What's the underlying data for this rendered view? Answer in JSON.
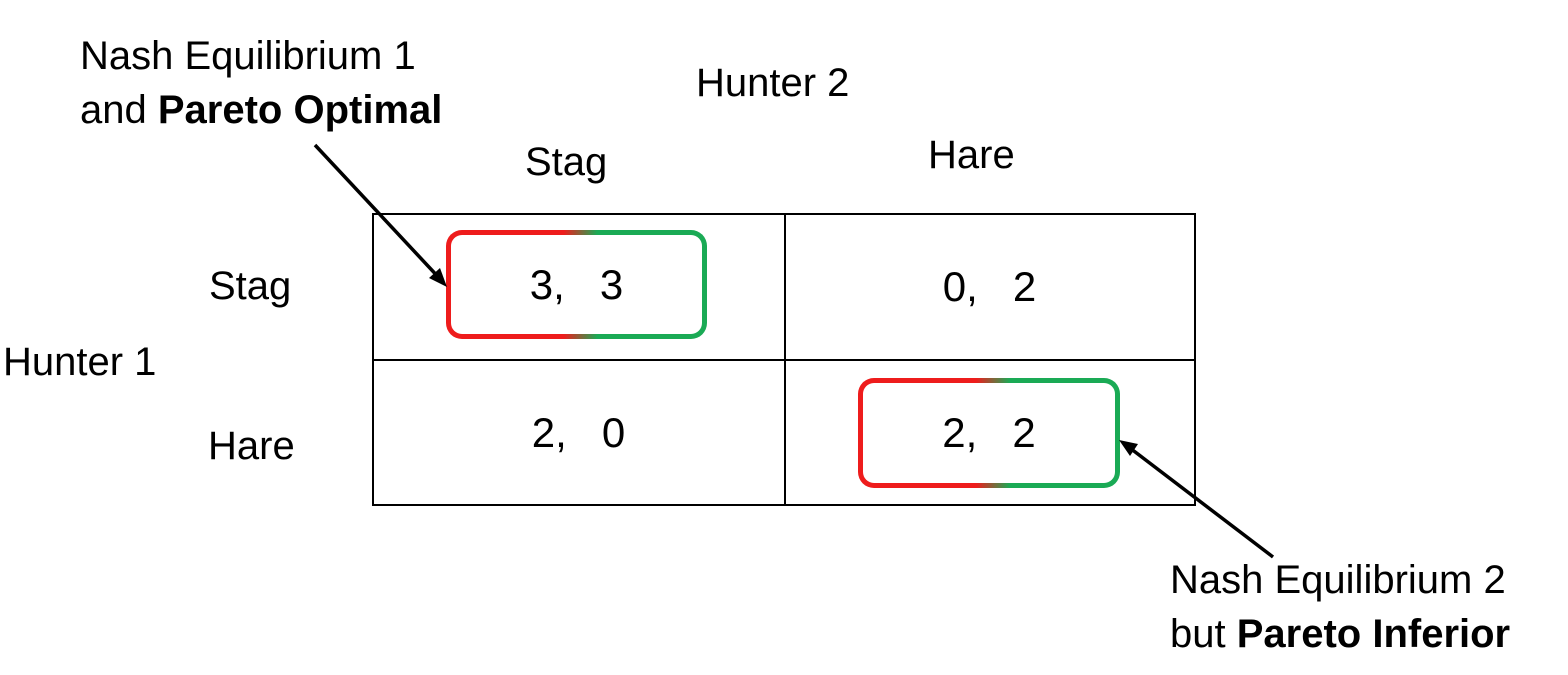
{
  "players": {
    "column_player": "Hunter 2",
    "row_player": "Hunter 1"
  },
  "strategies": {
    "columns": [
      "Stag",
      "Hare"
    ],
    "rows": [
      "Stag",
      "Hare"
    ]
  },
  "payoffs": {
    "stag_stag": "3,   3",
    "stag_hare": "0,   2",
    "hare_stag": "2,   0",
    "hare_hare": "2,   2"
  },
  "annotations": {
    "eq1": {
      "line1": "Nash Equilibrium 1",
      "line2_prefix": "and ",
      "line2_bold": "Pareto Optimal"
    },
    "eq2": {
      "line1": "Nash Equilibrium 2",
      "line2_prefix": "but ",
      "line2_bold": "Pareto Inferior"
    }
  },
  "colors": {
    "highlight_left": "#ee1c1c",
    "highlight_right": "#1aaa55",
    "lines": "#000000"
  }
}
